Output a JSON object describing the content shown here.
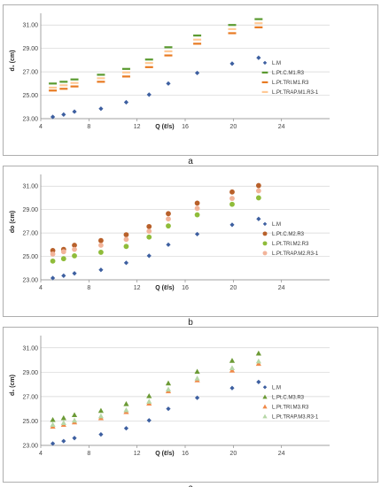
{
  "chart_data": [
    {
      "type": "scatter",
      "panel_label": "a",
      "xlabel": "Q (ℓ/s)",
      "ylabel": "d₁ (cm)",
      "xlim": [
        4,
        28
      ],
      "ylim": [
        23.0,
        32.0
      ],
      "xticks": [
        "4",
        "8",
        "12",
        "16",
        "20",
        "24"
      ],
      "yticks": [
        "23.00",
        "25.00",
        "27.00",
        "29.00",
        "31.00"
      ],
      "legend_position": "right",
      "x": [
        5.0,
        5.9,
        6.8,
        9.0,
        11.1,
        13.0,
        14.6,
        17.0,
        19.9,
        22.1
      ],
      "series": [
        {
          "name": "L.M",
          "marker": "diamond",
          "color": "#3d5fa0",
          "values": [
            23.15,
            23.35,
            23.6,
            23.85,
            24.4,
            25.05,
            26.0,
            26.9,
            27.7,
            28.2
          ]
        },
        {
          "name": "L.Pt.C.M1.R3",
          "marker": "dash",
          "color": "#5a9a2f",
          "values": [
            26.0,
            26.15,
            26.35,
            26.75,
            27.25,
            28.05,
            29.1,
            30.1,
            31.0,
            31.5
          ]
        },
        {
          "name": "L.Pt.TRI.M1.R3",
          "marker": "dash",
          "color": "#e87a22",
          "values": [
            25.4,
            25.55,
            25.75,
            26.15,
            26.6,
            27.4,
            28.4,
            29.4,
            30.3,
            30.8
          ]
        },
        {
          "name": "L.Pt.TRAP.M1.R3-1",
          "marker": "dash",
          "color": "#ffc996",
          "values": [
            25.65,
            25.85,
            26.05,
            26.45,
            26.95,
            27.75,
            28.75,
            29.75,
            30.65,
            31.15
          ]
        }
      ]
    },
    {
      "type": "scatter",
      "panel_label": "b",
      "xlabel": "Q (ℓ/s)",
      "ylabel": "do (cm)",
      "xlim": [
        4,
        28
      ],
      "ylim": [
        23.0,
        32.0
      ],
      "xticks": [
        "4",
        "8",
        "12",
        "16",
        "20",
        "24"
      ],
      "yticks": [
        "23.00",
        "25.00",
        "27.00",
        "29.00",
        "31.00"
      ],
      "legend_position": "right",
      "x": [
        5.0,
        5.9,
        6.8,
        9.0,
        11.1,
        13.0,
        14.6,
        17.0,
        19.9,
        22.1
      ],
      "series": [
        {
          "name": "L.M",
          "marker": "diamond",
          "color": "#3d5fa0",
          "values": [
            23.15,
            23.35,
            23.55,
            23.85,
            24.45,
            25.05,
            26.0,
            26.9,
            27.7,
            28.2
          ]
        },
        {
          "name": "L.Pt.C.M2.R3",
          "marker": "circle",
          "color": "#b8602a",
          "values": [
            25.5,
            25.6,
            25.95,
            26.35,
            26.85,
            27.55,
            28.65,
            29.55,
            30.5,
            31.05
          ]
        },
        {
          "name": "L.Pt.TRI.M2.R3",
          "marker": "circle",
          "color": "#8fbc3a",
          "values": [
            24.6,
            24.8,
            25.05,
            25.35,
            25.85,
            26.65,
            27.6,
            28.55,
            29.45,
            30.0
          ]
        },
        {
          "name": "L.Pt.TRAP.M2.R3-1",
          "marker": "circle",
          "color": "#f2b49a",
          "values": [
            25.2,
            25.4,
            25.6,
            25.95,
            26.45,
            27.15,
            28.2,
            29.1,
            29.95,
            30.6
          ]
        }
      ]
    },
    {
      "type": "scatter",
      "panel_label": "c",
      "xlabel": "Q (ℓ/s)",
      "ylabel": "d₁ (cm)",
      "xlim": [
        4,
        28
      ],
      "ylim": [
        23.0,
        32.0
      ],
      "xticks": [
        "4",
        "8",
        "12",
        "16",
        "20",
        "24"
      ],
      "yticks": [
        "23.00",
        "25.00",
        "27.00",
        "29.00",
        "31.00"
      ],
      "legend_position": "right",
      "x": [
        5.0,
        5.9,
        6.8,
        9.0,
        11.1,
        13.0,
        14.6,
        17.0,
        19.9,
        22.1
      ],
      "series": [
        {
          "name": "L.M",
          "marker": "diamond",
          "color": "#3d5fa0",
          "values": [
            23.15,
            23.35,
            23.6,
            23.9,
            24.4,
            25.05,
            26.0,
            26.9,
            27.7,
            28.2
          ]
        },
        {
          "name": "L.Pt.C.M3.R3",
          "marker": "triangle",
          "color": "#6b9a35",
          "values": [
            25.1,
            25.25,
            25.5,
            25.85,
            26.4,
            27.05,
            28.1,
            29.05,
            29.95,
            30.55
          ]
        },
        {
          "name": "L.Pt.TRI.M3.R3",
          "marker": "triangle",
          "color": "#f08a4a",
          "values": [
            24.55,
            24.7,
            24.9,
            25.25,
            25.75,
            26.45,
            27.45,
            28.35,
            29.15,
            29.7
          ]
        },
        {
          "name": "L.Pt.TRAP.M3.R3-1",
          "marker": "triangle",
          "color": "#b7d7a8",
          "values": [
            24.7,
            24.85,
            25.05,
            25.4,
            25.9,
            26.6,
            27.6,
            28.5,
            29.35,
            29.9
          ]
        }
      ]
    }
  ]
}
